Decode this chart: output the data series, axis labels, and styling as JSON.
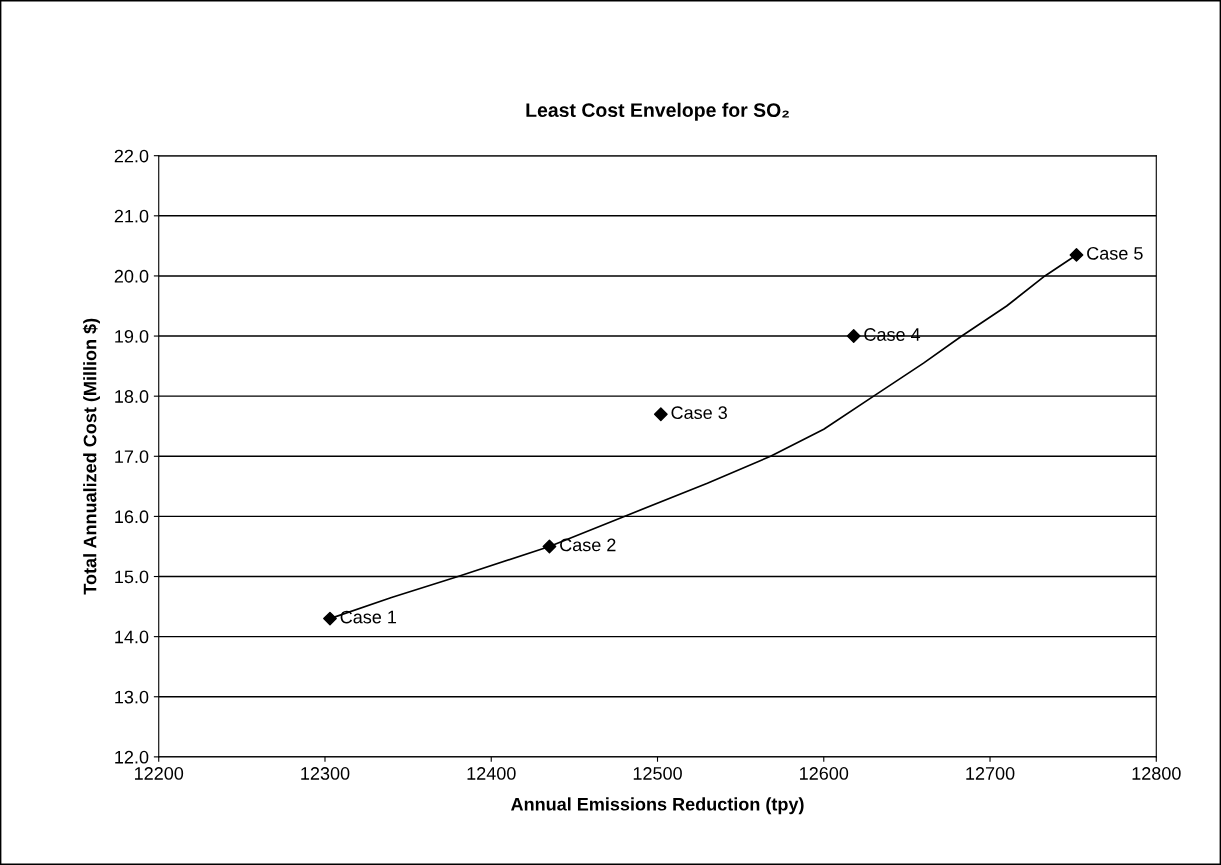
{
  "chart_data": {
    "type": "scatter",
    "title": "Least Cost Envelope for SO₂",
    "xlabel": "Annual Emissions Reduction (tpy)",
    "ylabel": "Total Annualized Cost (Million $)",
    "series": [
      {
        "color": "#000000",
        "marker": "diamond",
        "x": [
          12303,
          12435,
          12502,
          12618,
          12752
        ],
        "values": [
          14.3,
          15.5,
          17.7,
          19.0,
          20.35
        ]
      },
      {
        "type": "line",
        "color": "#000000",
        "marker": "none",
        "line_style": "solid",
        "x": [
          12303,
          12340,
          12380,
          12435,
          12480,
          12530,
          12568,
          12600,
          12630,
          12660,
          12683,
          12710,
          12733,
          12752
        ],
        "values": [
          14.3,
          14.65,
          15.0,
          15.5,
          16.0,
          16.55,
          17.0,
          17.45,
          18.0,
          18.55,
          19.0,
          19.5,
          20.0,
          20.35
        ]
      }
    ],
    "annotations": [
      {
        "text": "Case 1",
        "x": 12303,
        "y": 14.3
      },
      {
        "text": "Case 2",
        "x": 12435,
        "y": 15.5
      },
      {
        "text": "Case 3",
        "x": 12502,
        "y": 17.7
      },
      {
        "text": "Case 4",
        "x": 12618,
        "y": 19.0
      },
      {
        "text": "Case 5",
        "x": 12752,
        "y": 20.35
      }
    ],
    "xlim": [
      12200,
      12800
    ],
    "xticks": [
      12200,
      12300,
      12400,
      12500,
      12600,
      12700,
      12800
    ],
    "ylim": [
      12.0,
      22.0
    ],
    "yticks": [
      {
        "value": 12,
        "label": "12.0"
      },
      {
        "value": 13,
        "label": "13.0"
      },
      {
        "value": 14,
        "label": "14.0"
      },
      {
        "value": 15,
        "label": "15.0"
      },
      {
        "value": 16,
        "label": "16.0"
      },
      {
        "value": 17,
        "label": "17.0"
      },
      {
        "value": 18,
        "label": "18.0"
      },
      {
        "value": 19,
        "label": "19.0"
      },
      {
        "value": 20,
        "label": "20.0"
      },
      {
        "value": 21,
        "label": "21.0"
      },
      {
        "value": 22,
        "label": "22.0"
      }
    ],
    "grid": "y",
    "legend": false
  }
}
